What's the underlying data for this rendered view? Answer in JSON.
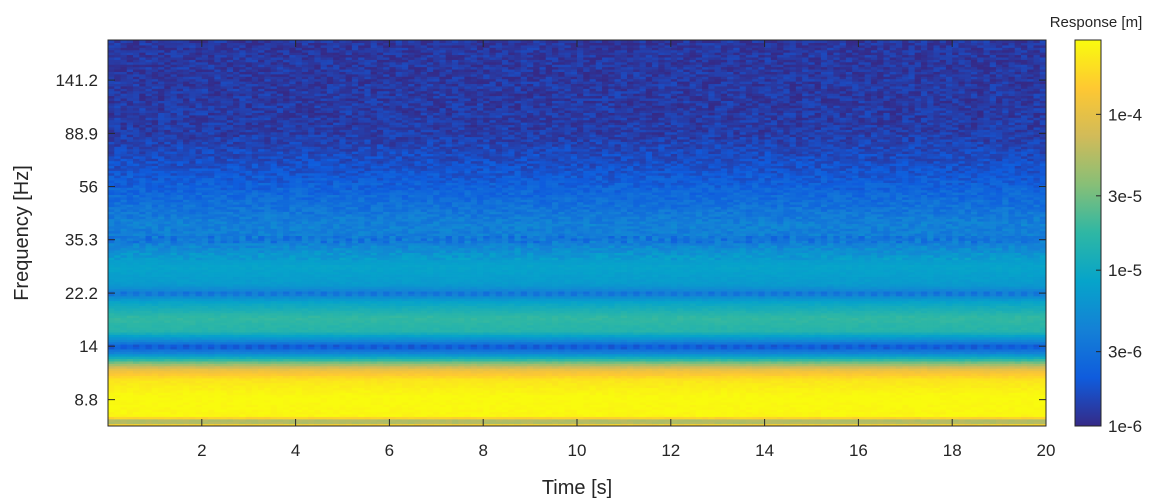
{
  "chart_data": {
    "type": "heatmap",
    "xlabel": "Time [s]",
    "ylabel": "Frequency [Hz]",
    "xlim": [
      0,
      20
    ],
    "x_ticks": [
      2,
      4,
      6,
      8,
      10,
      12,
      14,
      16,
      18,
      20
    ],
    "x_tick_labels": [
      "2",
      "4",
      "6",
      "8",
      "10",
      "12",
      "14",
      "16",
      "18",
      "20"
    ],
    "y_scale": "log",
    "ylim": [
      7,
      200
    ],
    "y_ticks": [
      8.8,
      14,
      22.2,
      35.3,
      56,
      88.9,
      141.2
    ],
    "y_tick_labels": [
      "8.8",
      "14",
      "22.2",
      "35.3",
      "56",
      "88.9",
      "141.2"
    ],
    "colorbar": {
      "title": "Response [m]",
      "scale": "log",
      "range": [
        1e-06,
        0.0003
      ],
      "ticks": [
        1e-06,
        3e-06,
        1e-05,
        3e-05,
        0.0001
      ],
      "tick_labels": [
        "1e-6",
        "3e-6",
        "1e-5",
        "3e-5",
        "1e-4"
      ],
      "colormap": "parula",
      "colors": [
        "#352a87",
        "#0f5cdd",
        "#1481d6",
        "#06a4ca",
        "#2eb7a4",
        "#87bf77",
        "#d1bb59",
        "#fec832",
        "#f9fb0e"
      ]
    },
    "frequency_profile": [
      {
        "f": 7.0,
        "response": 0.0003
      },
      {
        "f": 7.3,
        "response": 3e-05
      },
      {
        "f": 7.6,
        "response": 0.00028
      },
      {
        "f": 9.0,
        "response": 0.0003
      },
      {
        "f": 10.5,
        "response": 0.00022
      },
      {
        "f": 11.5,
        "response": 0.0001
      },
      {
        "f": 12.2,
        "response": 3e-05
      },
      {
        "f": 13.2,
        "response": 4.5e-06
      },
      {
        "f": 14.0,
        "response": 2.2e-06
      },
      {
        "f": 14.8,
        "response": 5e-06
      },
      {
        "f": 16.0,
        "response": 1.5e-05
      },
      {
        "f": 18.0,
        "response": 1.8e-05
      },
      {
        "f": 20.5,
        "response": 9e-06
      },
      {
        "f": 22.2,
        "response": 3.8e-06
      },
      {
        "f": 24.0,
        "response": 7e-06
      },
      {
        "f": 28.0,
        "response": 8.5e-06
      },
      {
        "f": 31.0,
        "response": 6.5e-06
      },
      {
        "f": 35.3,
        "response": 3.8e-06
      },
      {
        "f": 40.0,
        "response": 4.2e-06
      },
      {
        "f": 50.0,
        "response": 2.8e-06
      },
      {
        "f": 65.0,
        "response": 1.8e-06
      },
      {
        "f": 90.0,
        "response": 1.3e-06
      },
      {
        "f": 200.0,
        "response": 1.2e-06
      }
    ],
    "banding_frequencies_hz": [
      14,
      22.2,
      35.3
    ]
  }
}
